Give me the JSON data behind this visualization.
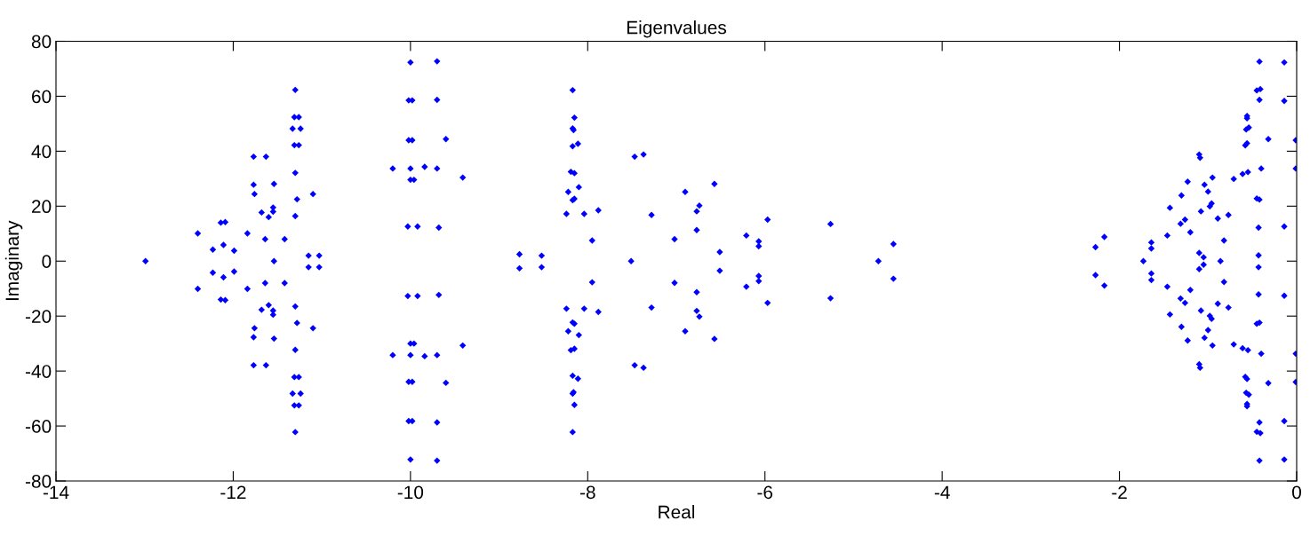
{
  "chart_data": {
    "type": "scatter",
    "title": "Eigenvalues",
    "xlabel": "Real",
    "ylabel": "Imaginary",
    "xlim": [
      -14,
      0
    ],
    "ylim": [
      -80,
      80
    ],
    "xticks": [
      -14,
      -12,
      -10,
      -8,
      -6,
      -4,
      -2,
      0
    ],
    "yticks": [
      -80,
      -60,
      -40,
      -20,
      0,
      20,
      40,
      60,
      80
    ],
    "grid": false,
    "marker": "diamond",
    "series": [
      {
        "color": "#0000ff",
        "x": [
          -12.99,
          -12.4,
          -12.4,
          -12.14,
          -12.09,
          -12.14,
          -12.09,
          -12.23,
          -12.23,
          -12.11,
          -12.11,
          -11.99,
          -11.99,
          -11.84,
          -11.84,
          -11.77,
          -11.63,
          -11.77,
          -11.63,
          -11.77,
          -11.76,
          -11.76,
          -11.77,
          -11.54,
          -11.54,
          -11.68,
          -11.6,
          -11.68,
          -11.6,
          -11.55,
          -11.55,
          -11.55,
          -11.55,
          -11.64,
          -11.64,
          -11.42,
          -11.42,
          -11.54,
          -11.3,
          -11.31,
          -11.26,
          -11.33,
          -11.24,
          -11.31,
          -11.26,
          -11.3,
          -11.28,
          -11.3,
          -11.1,
          -11.3,
          -11.31,
          -11.26,
          -11.33,
          -11.24,
          -11.31,
          -11.26,
          -11.3,
          -11.28,
          -11.3,
          -11.1,
          -11.15,
          -11.03,
          -11.15,
          -11.03,
          -10.0,
          -9.7,
          -10.02,
          -9.98,
          -9.7,
          -10.02,
          -9.98,
          -9.6,
          -10.2,
          -10.0,
          -9.84,
          -9.7,
          -9.41,
          -10.0,
          -9.96,
          -10.03,
          -9.92,
          -9.68,
          -10.0,
          -9.7,
          -10.02,
          -9.98,
          -9.7,
          -10.02,
          -9.98,
          -9.6,
          -10.2,
          -10.0,
          -9.84,
          -9.7,
          -9.41,
          -10.0,
          -9.96,
          -10.03,
          -9.92,
          -9.68,
          -8.77,
          -8.77,
          -8.52,
          -8.52,
          -8.17,
          -8.15,
          -8.17,
          -8.16,
          -8.17,
          -8.11,
          -8.19,
          -8.15,
          -8.22,
          -8.1,
          -8.17,
          -8.15,
          -8.24,
          -8.04,
          -7.88,
          -7.95,
          -8.17,
          -8.15,
          -8.17,
          -8.16,
          -8.17,
          -8.11,
          -8.19,
          -8.15,
          -8.22,
          -8.1,
          -8.17,
          -8.15,
          -8.24,
          -8.04,
          -7.88,
          -7.95,
          -7.51,
          -7.47,
          -7.37,
          -7.47,
          -7.37,
          -7.28,
          -7.28,
          -7.02,
          -7.02,
          -6.9,
          -6.9,
          -6.77,
          -6.74,
          -6.77,
          -6.74,
          -6.77,
          -6.77,
          -6.57,
          -6.57,
          -6.51,
          -6.51,
          -6.21,
          -6.21,
          -6.07,
          -6.07,
          -6.07,
          -6.07,
          -5.97,
          -5.97,
          -5.26,
          -5.26,
          -4.72,
          -4.55,
          -4.55,
          -2.27,
          -2.27,
          -2.17,
          -2.17,
          -1.73,
          -1.64,
          -1.64,
          -1.64,
          -1.64,
          -1.46,
          -1.46,
          -1.43,
          -1.43,
          -1.31,
          -1.26,
          -1.31,
          -1.26,
          -1.2,
          -1.2,
          -1.3,
          -1.3,
          -1.23,
          -1.23,
          -1.1,
          -1.09,
          -1.1,
          -1.09,
          -1.08,
          -1.08,
          -1.04,
          -1.04,
          -1.0,
          -1.0,
          -0.95,
          -0.95,
          -0.98,
          -0.96,
          -0.98,
          -0.96,
          -1.1,
          -1.05,
          -1.05,
          -1.1,
          -0.86,
          -0.89,
          -0.89,
          -0.82,
          -0.82,
          -0.77,
          -0.77,
          -0.71,
          -0.71,
          -0.61,
          -0.55,
          -0.61,
          -0.55,
          -0.58,
          -0.56,
          -0.58,
          -0.56,
          -0.57,
          -0.54,
          -0.57,
          -0.54,
          -0.56,
          -0.56,
          -0.56,
          -0.56,
          -0.45,
          -0.42,
          -0.45,
          -0.42,
          -0.43,
          -0.43,
          -0.43,
          -0.43,
          -0.45,
          -0.41,
          -0.45,
          -0.41,
          -0.42,
          -0.42,
          -0.42,
          -0.42,
          -0.4,
          -0.4,
          -0.32,
          -0.32,
          -0.14,
          -0.14,
          -0.14,
          -0.14,
          -0.14,
          -0.14,
          -0.01,
          -0.01,
          -0.01,
          -0.01
        ],
        "values": [
          0,
          10.1,
          -10.1,
          14.0,
          14.2,
          -14.0,
          -14.2,
          4.2,
          -4.2,
          5.9,
          -5.9,
          3.8,
          -3.8,
          10.1,
          -10.1,
          38.0,
          38.0,
          -37.9,
          -37.9,
          27.8,
          24.4,
          -24.4,
          -27.7,
          28.1,
          -28.2,
          17.7,
          16.0,
          -17.7,
          -16.0,
          19.5,
          18.0,
          -19.5,
          -18.0,
          8.0,
          -8.0,
          8.0,
          -8.0,
          0,
          62.3,
          52.4,
          52.4,
          48.2,
          48.2,
          42.2,
          42.2,
          32.1,
          22.5,
          16.4,
          24.4,
          -62.2,
          -52.5,
          -52.5,
          -48.2,
          -48.2,
          -42.2,
          -42.2,
          -32.3,
          -22.5,
          -16.5,
          -24.4,
          2.0,
          2.0,
          -2.2,
          -2.2,
          72.3,
          72.7,
          58.5,
          58.5,
          58.7,
          44.0,
          44.0,
          44.4,
          33.7,
          33.7,
          34.3,
          33.7,
          30.4,
          29.6,
          29.6,
          12.6,
          12.6,
          12.2,
          -72.2,
          -72.6,
          -58.2,
          -58.2,
          -58.7,
          -43.9,
          -43.9,
          -44.3,
          -34.2,
          -34.2,
          -34.6,
          -34.2,
          -30.7,
          -30.0,
          -30.0,
          -12.7,
          -12.7,
          -12.3,
          2.5,
          -2.6,
          2.0,
          -2.2,
          62.2,
          52.2,
          48.3,
          47.7,
          41.8,
          42.7,
          32.5,
          32.0,
          25.2,
          26.9,
          22.2,
          22.7,
          17.2,
          17.2,
          18.5,
          7.5,
          -62.2,
          -52.3,
          -48.2,
          -47.7,
          -41.7,
          -42.8,
          -32.4,
          -31.9,
          -25.5,
          -26.9,
          -22.3,
          -22.8,
          -17.3,
          -17.3,
          -18.5,
          -7.7,
          0,
          38.0,
          38.8,
          -37.9,
          -38.8,
          16.8,
          -16.9,
          8.0,
          -7.9,
          25.2,
          -25.5,
          18.1,
          20.2,
          -18.1,
          -20.2,
          11.3,
          -11.3,
          28.1,
          -28.3,
          3.3,
          -3.5,
          9.3,
          -9.3,
          7.2,
          5.4,
          -5.4,
          -7.3,
          15.1,
          -15.2,
          13.5,
          -13.5,
          0,
          6.2,
          -6.4,
          5.1,
          -5.1,
          8.8,
          -8.9,
          0,
          6.8,
          4.6,
          -4.5,
          -6.9,
          9.3,
          -9.3,
          19.4,
          -19.4,
          13.6,
          15.1,
          -13.6,
          -15.2,
          10.5,
          -10.5,
          23.9,
          -23.9,
          28.9,
          -28.9,
          38.8,
          37.6,
          -37.5,
          -38.8,
          18.1,
          -18.0,
          27.8,
          -27.9,
          25.3,
          -25.1,
          30.4,
          -30.7,
          19.9,
          21.0,
          -19.9,
          -21.0,
          3.0,
          1.4,
          -1.3,
          -2.9,
          0,
          15.5,
          -15.5,
          7.5,
          -7.6,
          16.8,
          -16.9,
          29.9,
          -30.3,
          31.7,
          32.4,
          -31.7,
          -32.4,
          42.1,
          42.9,
          -42.1,
          -42.9,
          47.9,
          48.6,
          -47.9,
          -48.6,
          52.8,
          52.0,
          -52.8,
          -52.0,
          22.8,
          22.4,
          -22.8,
          -22.4,
          12.2,
          -12.1,
          2.1,
          -2.2,
          62.1,
          62.6,
          -62.1,
          -62.6,
          58.7,
          -58.7,
          72.6,
          -72.6,
          33.7,
          -33.7,
          44.4,
          -44.4,
          72.3,
          -72.2,
          58.3,
          -58.2,
          12.6,
          -12.6,
          44.0,
          -44.0,
          33.7,
          -33.7
        ]
      }
    ]
  }
}
